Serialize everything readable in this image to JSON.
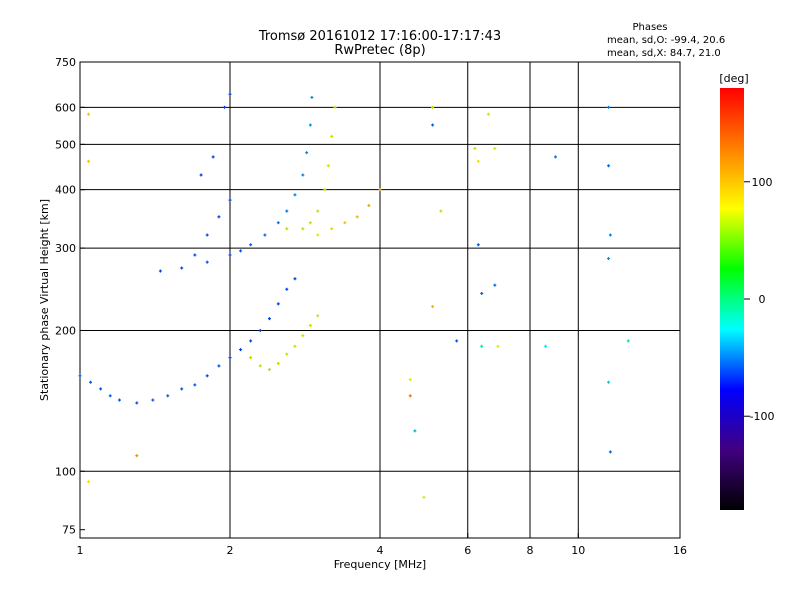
{
  "chart_data": {
    "type": "scatter",
    "title": "Tromsø 20161012 17:16:00-17:17:43",
    "subtitle": "RwPretec (8p)",
    "xlabel": "Frequency [MHz]",
    "ylabel": "Stationary phase Virtual Height [km]",
    "x_scale": "log",
    "y_scale": "log",
    "xlim": [
      1,
      16
    ],
    "ylim": [
      72,
      750
    ],
    "x_ticks": [
      "1",
      "2",
      "4",
      "6",
      "8",
      "10",
      "16"
    ],
    "x_tick_values": [
      1,
      2,
      4,
      6,
      8,
      10,
      16
    ],
    "y_ticks": [
      "75",
      "100",
      "200",
      "300",
      "400",
      "500",
      "600",
      "750"
    ],
    "y_tick_values": [
      75,
      100,
      200,
      300,
      400,
      500,
      600,
      750
    ],
    "x_grid": [
      2,
      4,
      6,
      8,
      10
    ],
    "y_grid": [
      100,
      200,
      300,
      400,
      500,
      600
    ],
    "grid": true,
    "phases_box": {
      "title": "Phases",
      "line1": "mean, sd,O: -99.4, 20.6",
      "line2": "mean, sd,X:  84.7, 21.0"
    },
    "colorbar": {
      "label": "[deg]",
      "range": [
        -180,
        180
      ],
      "ticks": [
        "100",
        "0",
        "-100"
      ],
      "tick_values": [
        100,
        0,
        -100
      ],
      "stops": [
        "#ff0000",
        "#ff8000",
        "#ffff00",
        "#00ff00",
        "#00ffff",
        "#0000ff",
        "#400080",
        "#000000"
      ]
    },
    "series": [
      {
        "points": [
          [
            1.0,
            160,
            -105
          ],
          [
            1.05,
            155,
            -110
          ],
          [
            1.1,
            150,
            -112
          ],
          [
            1.15,
            145,
            -108
          ],
          [
            1.2,
            142,
            -110
          ],
          [
            1.3,
            140,
            -112
          ],
          [
            1.4,
            142,
            -110
          ],
          [
            1.5,
            145,
            -108
          ],
          [
            1.6,
            150,
            -112
          ],
          [
            1.7,
            153,
            -110
          ],
          [
            1.8,
            160,
            -115
          ],
          [
            1.9,
            168,
            -112
          ],
          [
            2.0,
            175,
            -115
          ],
          [
            2.1,
            182,
            -118
          ],
          [
            2.2,
            190,
            -115
          ],
          [
            2.3,
            200,
            -120
          ],
          [
            2.4,
            212,
            -118
          ],
          [
            2.5,
            228,
            -120
          ],
          [
            2.6,
            245,
            -118
          ],
          [
            2.7,
            258,
            -120
          ]
        ]
      },
      {
        "points": [
          [
            1.45,
            268,
            -115
          ],
          [
            1.6,
            272,
            -115
          ],
          [
            1.8,
            280,
            -112
          ],
          [
            2.0,
            290,
            -112
          ],
          [
            2.1,
            296,
            -110
          ],
          [
            2.2,
            305,
            -108
          ],
          [
            2.35,
            320,
            -105
          ],
          [
            2.5,
            340,
            -100
          ],
          [
            2.6,
            360,
            -100
          ],
          [
            2.7,
            390,
            -95
          ],
          [
            2.8,
            430,
            -95
          ],
          [
            2.85,
            480,
            -92
          ],
          [
            2.9,
            550,
            -90
          ],
          [
            2.92,
            630,
            -90
          ]
        ]
      },
      {
        "points": [
          [
            1.7,
            290,
            -115
          ],
          [
            1.8,
            320,
            -115
          ],
          [
            1.9,
            350,
            -118
          ],
          [
            2.0,
            380,
            -115
          ],
          [
            1.75,
            430,
            -120
          ],
          [
            1.85,
            470,
            -118
          ],
          [
            1.95,
            600,
            -118
          ],
          [
            2.0,
            640,
            -115
          ]
        ]
      },
      {
        "points": [
          [
            2.2,
            175,
            80
          ],
          [
            2.3,
            168,
            82
          ],
          [
            2.4,
            165,
            80
          ],
          [
            2.5,
            170,
            82
          ],
          [
            2.6,
            178,
            84
          ],
          [
            2.7,
            185,
            86
          ],
          [
            2.8,
            195,
            84
          ],
          [
            2.9,
            205,
            85
          ],
          [
            3.0,
            215,
            86
          ]
        ]
      },
      {
        "points": [
          [
            2.6,
            330,
            80
          ],
          [
            2.8,
            330,
            82
          ],
          [
            2.9,
            340,
            84
          ],
          [
            3.0,
            360,
            84
          ],
          [
            3.1,
            400,
            86
          ],
          [
            3.15,
            450,
            86
          ],
          [
            3.2,
            520,
            85
          ],
          [
            3.25,
            600,
            84
          ]
        ]
      },
      {
        "points": [
          [
            3.0,
            320,
            100
          ],
          [
            3.2,
            330,
            105
          ],
          [
            3.4,
            340,
            110
          ],
          [
            3.6,
            350,
            115
          ],
          [
            3.8,
            370,
            120
          ],
          [
            4.0,
            400,
            125
          ]
        ]
      },
      {
        "points": [
          [
            5.1,
            600,
            80
          ],
          [
            5.3,
            360,
            85
          ],
          [
            6.2,
            490,
            90
          ],
          [
            6.3,
            460,
            100
          ],
          [
            6.6,
            580,
            90
          ],
          [
            6.8,
            490,
            100
          ],
          [
            9.0,
            470,
            -100
          ],
          [
            11.5,
            600,
            -100
          ],
          [
            11.5,
            450,
            -105
          ],
          [
            11.6,
            320,
            -95
          ],
          [
            11.5,
            285,
            -90
          ],
          [
            11.6,
            110,
            -105
          ],
          [
            12.6,
            190,
            -30
          ],
          [
            11.5,
            155,
            -70
          ],
          [
            8.6,
            185,
            -60
          ],
          [
            6.8,
            250,
            -105
          ],
          [
            6.4,
            240,
            -108
          ],
          [
            6.3,
            305,
            -112
          ],
          [
            5.1,
            225,
            115
          ],
          [
            5.1,
            550,
            -108
          ],
          [
            4.9,
            88,
            95
          ],
          [
            4.7,
            122,
            -80
          ],
          [
            4.6,
            157,
            100
          ],
          [
            4.6,
            145,
            140
          ],
          [
            5.7,
            190,
            -110
          ],
          [
            6.4,
            185,
            -40
          ],
          [
            6.9,
            185,
            100
          ],
          [
            1.04,
            95,
            100
          ],
          [
            1.04,
            580,
            110
          ],
          [
            1.04,
            460,
            110
          ],
          [
            1.3,
            108,
            130
          ]
        ]
      }
    ]
  }
}
